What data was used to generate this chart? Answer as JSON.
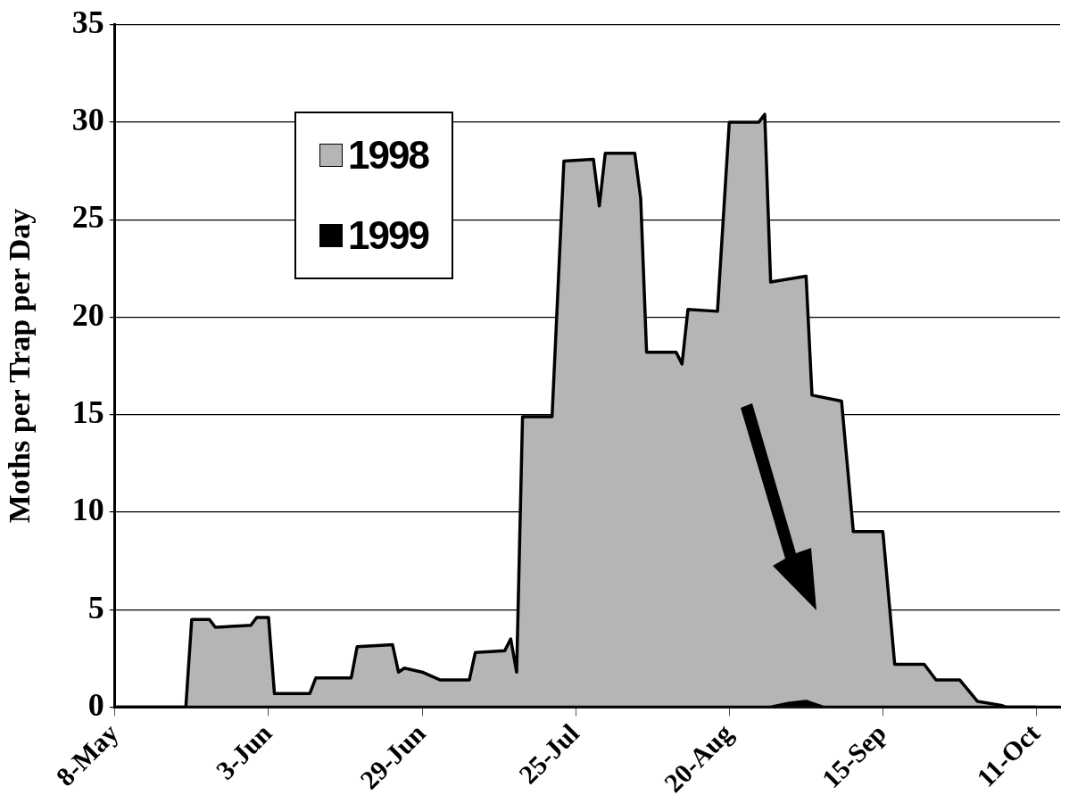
{
  "chart_data": {
    "type": "area",
    "ylabel": "Moths per Trap per Day",
    "xlim": [
      "--05-08",
      "--10-15"
    ],
    "xticks": [
      {
        "value": "--05-08",
        "label": "8-May"
      },
      {
        "value": "--06-03",
        "label": "3-Jun"
      },
      {
        "value": "--06-29",
        "label": "29-Jun"
      },
      {
        "value": "--07-25",
        "label": "25-Jul"
      },
      {
        "value": "--08-20",
        "label": "20-Aug"
      },
      {
        "value": "--09-15",
        "label": "15-Sep"
      },
      {
        "value": "--10-11",
        "label": "11-Oct"
      }
    ],
    "ylim": [
      0,
      35
    ],
    "yticks": [
      0,
      5,
      10,
      15,
      20,
      25,
      30,
      35
    ],
    "grid": "y",
    "legend": "top left",
    "marker": "none",
    "series": [
      {
        "name": "1998",
        "color": "#b5b5b5",
        "x": [
          "--05-08",
          "--05-20",
          "--05-21",
          "--05-24",
          "--05-25",
          "--05-31",
          "--06-01",
          "--06-03",
          "--06-04",
          "--06-10",
          "--06-11",
          "--06-17",
          "--06-18",
          "--06-24",
          "--06-25",
          "--06-26",
          "--06-29",
          "--07-02",
          "--07-07",
          "--07-08",
          "--07-13",
          "--07-14",
          "--07-15",
          "--07-16",
          "--07-21",
          "--07-23",
          "--07-28",
          "--07-29",
          "--07-30",
          "--08-04",
          "--08-05",
          "--08-06",
          "--08-11",
          "--08-12",
          "--08-13",
          "--08-18",
          "--08-20",
          "--08-25",
          "--08-26",
          "--08-27",
          "--09-02",
          "--09-03",
          "--09-08",
          "--09-10",
          "--09-15",
          "--09-17",
          "--09-22",
          "--09-24",
          "--09-28",
          "--10-01",
          "--10-05",
          "--10-06",
          "--10-15"
        ],
        "values": [
          0,
          0,
          4.5,
          4.5,
          4.1,
          4.2,
          4.6,
          4.6,
          0.7,
          0.7,
          1.5,
          1.5,
          3.1,
          3.2,
          1.8,
          2.0,
          1.8,
          1.4,
          1.4,
          2.8,
          2.9,
          3.5,
          1.8,
          14.9,
          14.9,
          28.0,
          28.1,
          25.7,
          28.4,
          28.4,
          26.1,
          18.2,
          18.2,
          17.6,
          20.4,
          20.3,
          30.0,
          30.0,
          30.4,
          21.8,
          22.1,
          16.0,
          15.7,
          9.0,
          9.0,
          2.2,
          2.2,
          1.4,
          1.4,
          0.3,
          0.1,
          0,
          0
        ]
      },
      {
        "name": "1999",
        "color": "#000000",
        "x": [
          "--05-08",
          "--08-27",
          "--08-30",
          "--09-02",
          "--09-05",
          "--10-11"
        ],
        "values": [
          0,
          0,
          0.2,
          0.3,
          0,
          0
        ]
      }
    ]
  }
}
